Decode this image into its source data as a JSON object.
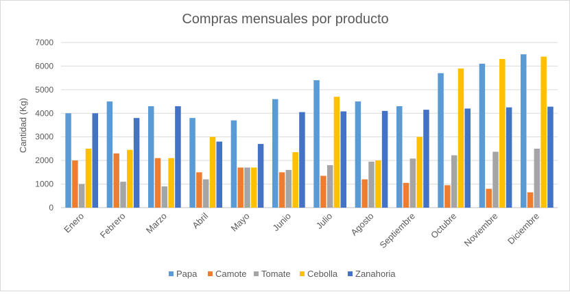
{
  "chart_data": {
    "type": "bar",
    "title": "Compras mensuales por producto",
    "xlabel": "",
    "ylabel": "Cantidad (Kg)",
    "ylim": [
      0,
      7000
    ],
    "yticks": [
      0,
      1000,
      2000,
      3000,
      4000,
      5000,
      6000,
      7000
    ],
    "grid": true,
    "legend_position": "bottom",
    "categories": [
      "Enero",
      "Febrero",
      "Marzo",
      "Abril",
      "Mayo",
      "Junio",
      "Julio",
      "Agosto",
      "Septiembre",
      "Octubre",
      "Noviembre",
      "Diciembre"
    ],
    "series": [
      {
        "name": "Papa",
        "color": "#5b9bd5",
        "values": [
          4000,
          4500,
          4300,
          3800,
          3700,
          4600,
          5400,
          4500,
          4300,
          5700,
          6100,
          6500
        ]
      },
      {
        "name": "Camote",
        "color": "#ed7d31",
        "values": [
          2000,
          2300,
          2100,
          1500,
          1700,
          1500,
          1350,
          1200,
          1050,
          950,
          800,
          650
        ]
      },
      {
        "name": "Tomate",
        "color": "#a5a5a5",
        "values": [
          1000,
          1100,
          900,
          1200,
          1700,
          1600,
          1800,
          1950,
          2080,
          2220,
          2370,
          2500
        ]
      },
      {
        "name": "Cebolla",
        "color": "#ffc000",
        "values": [
          2500,
          2450,
          2100,
          3000,
          1700,
          2350,
          4700,
          2000,
          3000,
          5900,
          6300,
          6400
        ]
      },
      {
        "name": "Zanahoria",
        "color": "#4472c4",
        "values": [
          4000,
          3800,
          4300,
          2800,
          2700,
          4050,
          4080,
          4100,
          4150,
          4200,
          4250,
          4280
        ]
      }
    ]
  }
}
